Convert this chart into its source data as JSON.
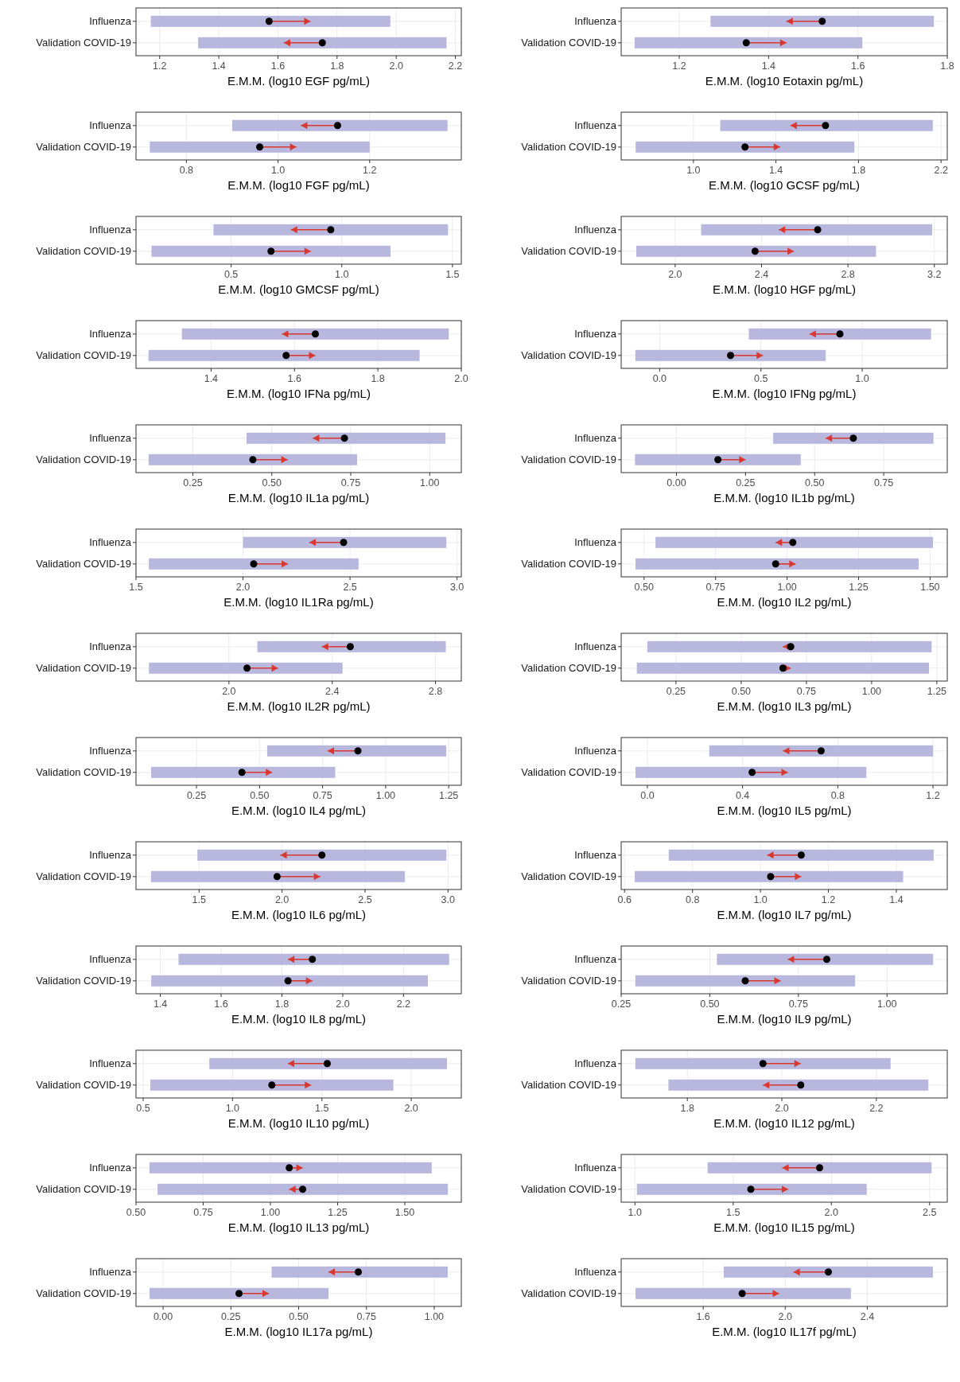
{
  "chart_data": [
    {
      "type": "bar",
      "orientation": "horizontal",
      "grid": true,
      "xlabel": "E.M.M. (log10 EGF pg/mL)",
      "categories": [
        "Influenza",
        "Validation COVID-19"
      ],
      "xlim": [
        1.12,
        2.22
      ],
      "xticks": [
        1.2,
        1.4,
        1.6,
        1.8,
        {
          "value": 2,
          "label": "2.0"
        },
        2.2
      ],
      "series": [
        {
          "type": "bar",
          "color": "#b4b4dc",
          "base": [
            1.17,
            1.33
          ],
          "values": [
            0.81,
            0.84
          ]
        },
        {
          "type": "scatter",
          "marker": "circle",
          "color": "#000000",
          "values": [
            1.57,
            1.75
          ],
          "errors": [
            [
              1.57,
              1.71
            ],
            [
              1.62,
              1.75
            ]
          ]
        }
      ]
    },
    {
      "type": "bar",
      "orientation": "horizontal",
      "grid": true,
      "xlabel": "E.M.M. (log10 Eotaxin pg/mL)",
      "categories": [
        "Influenza",
        "Validation COVID-19"
      ],
      "xlim": [
        1.07,
        1.8
      ],
      "xticks": [
        1.2,
        1.4,
        1.6,
        1.8
      ],
      "series": [
        {
          "type": "bar",
          "color": "#b4b4dc",
          "base": [
            1.27,
            1.1
          ],
          "values": [
            0.5,
            0.51
          ]
        },
        {
          "type": "scatter",
          "marker": "circle",
          "color": "#000000",
          "values": [
            1.52,
            1.35
          ],
          "errors": [
            [
              1.44,
              1.52
            ],
            [
              1.35,
              1.44
            ]
          ]
        }
      ]
    },
    {
      "type": "bar",
      "orientation": "horizontal",
      "grid": true,
      "xlabel": "E.M.M. (log10 FGF pg/mL)",
      "categories": [
        "Influenza",
        "Validation COVID-19"
      ],
      "xlim": [
        0.69,
        1.4
      ],
      "xticks": [
        0.8,
        {
          "value": 1,
          "label": "1.0"
        },
        1.2
      ],
      "series": [
        {
          "type": "bar",
          "color": "#b4b4dc",
          "base": [
            0.9,
            0.72
          ],
          "values": [
            0.47,
            0.48
          ]
        },
        {
          "type": "scatter",
          "marker": "circle",
          "color": "#000000",
          "values": [
            1.13,
            0.96
          ],
          "errors": [
            [
              1.05,
              1.13
            ],
            [
              0.96,
              1.04
            ]
          ]
        }
      ]
    },
    {
      "type": "bar",
      "orientation": "horizontal",
      "grid": true,
      "xlabel": "E.M.M. (log10 GCSF pg/mL)",
      "categories": [
        "Influenza",
        "Validation COVID-19"
      ],
      "xlim": [
        0.65,
        2.23
      ],
      "xticks": [
        {
          "value": 1,
          "label": "1.0"
        },
        1.4,
        1.8,
        2.2
      ],
      "series": [
        {
          "type": "bar",
          "color": "#b4b4dc",
          "base": [
            1.13,
            0.72
          ],
          "values": [
            1.03,
            1.06
          ]
        },
        {
          "type": "scatter",
          "marker": "circle",
          "color": "#000000",
          "values": [
            1.64,
            1.25
          ],
          "errors": [
            [
              1.47,
              1.64
            ],
            [
              1.25,
              1.42
            ]
          ]
        }
      ]
    },
    {
      "type": "bar",
      "orientation": "horizontal",
      "grid": true,
      "xlabel": "E.M.M. (log10 GMCSF pg/mL)",
      "categories": [
        "Influenza",
        "Validation COVID-19"
      ],
      "xlim": [
        0.07,
        1.54
      ],
      "xticks": [
        0.5,
        {
          "value": 1,
          "label": "1.0"
        },
        1.5
      ],
      "series": [
        {
          "type": "bar",
          "color": "#b4b4dc",
          "base": [
            0.42,
            0.14
          ],
          "values": [
            1.06,
            1.08
          ]
        },
        {
          "type": "scatter",
          "marker": "circle",
          "color": "#000000",
          "values": [
            0.95,
            0.68
          ],
          "errors": [
            [
              0.77,
              0.95
            ],
            [
              0.68,
              0.86
            ]
          ]
        }
      ]
    },
    {
      "type": "bar",
      "orientation": "horizontal",
      "grid": true,
      "xlabel": "E.M.M. (log10 HGF pg/mL)",
      "categories": [
        "Influenza",
        "Validation COVID-19"
      ],
      "xlim": [
        1.75,
        3.26
      ],
      "xticks": [
        {
          "value": 2,
          "label": "2.0"
        },
        2.4,
        2.8,
        3.2
      ],
      "series": [
        {
          "type": "bar",
          "color": "#b4b4dc",
          "base": [
            2.12,
            1.82
          ],
          "values": [
            1.07,
            1.11
          ]
        },
        {
          "type": "scatter",
          "marker": "circle",
          "color": "#000000",
          "values": [
            2.66,
            2.37
          ],
          "errors": [
            [
              2.48,
              2.66
            ],
            [
              2.37,
              2.55
            ]
          ]
        }
      ]
    },
    {
      "type": "bar",
      "orientation": "horizontal",
      "grid": true,
      "xlabel": "E.M.M. (log10 IFNa pg/mL)",
      "categories": [
        "Influenza",
        "Validation COVID-19"
      ],
      "xlim": [
        1.22,
        2.0
      ],
      "xticks": [
        1.4,
        1.6,
        1.8,
        {
          "value": 2,
          "label": "2.0"
        }
      ],
      "series": [
        {
          "type": "bar",
          "color": "#b4b4dc",
          "base": [
            1.33,
            1.25
          ],
          "values": [
            0.64,
            0.65
          ]
        },
        {
          "type": "scatter",
          "marker": "circle",
          "color": "#000000",
          "values": [
            1.65,
            1.58
          ],
          "errors": [
            [
              1.57,
              1.65
            ],
            [
              1.58,
              1.65
            ]
          ]
        }
      ]
    },
    {
      "type": "bar",
      "orientation": "horizontal",
      "grid": true,
      "xlabel": "E.M.M. (log10 IFNg pg/mL)",
      "categories": [
        "Influenza",
        "Validation COVID-19"
      ],
      "xlim": [
        -0.19,
        1.42
      ],
      "xticks": [
        {
          "value": 0,
          "label": "0.0"
        },
        0.5,
        {
          "value": 1,
          "label": "1.0"
        }
      ],
      "series": [
        {
          "type": "bar",
          "color": "#b4b4dc",
          "base": [
            0.44,
            -0.12
          ],
          "values": [
            0.9,
            0.94
          ]
        },
        {
          "type": "scatter",
          "marker": "circle",
          "color": "#000000",
          "values": [
            0.89,
            0.35
          ],
          "errors": [
            [
              0.74,
              0.89
            ],
            [
              0.35,
              0.51
            ]
          ]
        }
      ]
    },
    {
      "type": "bar",
      "orientation": "horizontal",
      "grid": true,
      "xlabel": "E.M.M. (log10 IL1a pg/mL)",
      "categories": [
        "Influenza",
        "Validation COVID-19"
      ],
      "xlim": [
        0.07,
        1.1
      ],
      "xticks": [
        0.25,
        {
          "value": 0.5,
          "label": "0.50"
        },
        0.75,
        {
          "value": 1,
          "label": "1.00"
        }
      ],
      "series": [
        {
          "type": "bar",
          "color": "#b4b4dc",
          "base": [
            0.42,
            0.11
          ],
          "values": [
            0.63,
            0.66
          ]
        },
        {
          "type": "scatter",
          "marker": "circle",
          "color": "#000000",
          "values": [
            0.73,
            0.44
          ],
          "errors": [
            [
              0.63,
              0.73
            ],
            [
              0.44,
              0.55
            ]
          ]
        }
      ]
    },
    {
      "type": "bar",
      "orientation": "horizontal",
      "grid": true,
      "xlabel": "E.M.M. (log10 IL1b pg/mL)",
      "categories": [
        "Influenza",
        "Validation COVID-19"
      ],
      "xlim": [
        -0.2,
        0.98
      ],
      "xticks": [
        {
          "value": 0,
          "label": "0.00"
        },
        0.25,
        {
          "value": 0.5,
          "label": "0.50"
        },
        0.75
      ],
      "series": [
        {
          "type": "bar",
          "color": "#b4b4dc",
          "base": [
            0.35,
            -0.15
          ],
          "values": [
            0.58,
            0.6
          ]
        },
        {
          "type": "scatter",
          "marker": "circle",
          "color": "#000000",
          "values": [
            0.64,
            0.15
          ],
          "errors": [
            [
              0.54,
              0.64
            ],
            [
              0.15,
              0.25
            ]
          ]
        }
      ]
    },
    {
      "type": "bar",
      "orientation": "horizontal",
      "grid": true,
      "xlabel": "E.M.M. (log10 IL1Ra pg/mL)",
      "categories": [
        "Influenza",
        "Validation COVID-19"
      ],
      "xlim": [
        1.5,
        3.02
      ],
      "xticks": [
        1.5,
        {
          "value": 2,
          "label": "2.0"
        },
        2.5,
        {
          "value": 3,
          "label": "3.0"
        }
      ],
      "series": [
        {
          "type": "bar",
          "color": "#b4b4dc",
          "base": [
            2.0,
            1.56
          ],
          "values": [
            0.95,
            0.98
          ]
        },
        {
          "type": "scatter",
          "marker": "circle",
          "color": "#000000",
          "values": [
            2.47,
            2.05
          ],
          "errors": [
            [
              2.31,
              2.47
            ],
            [
              2.05,
              2.21
            ]
          ]
        }
      ]
    },
    {
      "type": "bar",
      "orientation": "horizontal",
      "grid": true,
      "xlabel": "E.M.M. (log10 IL2 pg/mL)",
      "categories": [
        "Influenza",
        "Validation COVID-19"
      ],
      "xlim": [
        0.42,
        1.56
      ],
      "xticks": [
        {
          "value": 0.5,
          "label": "0.50"
        },
        0.75,
        {
          "value": 1,
          "label": "1.00"
        },
        1.25,
        {
          "value": 1.5,
          "label": "1.50"
        }
      ],
      "series": [
        {
          "type": "bar",
          "color": "#b4b4dc",
          "base": [
            0.54,
            0.47
          ],
          "values": [
            0.97,
            0.99
          ]
        },
        {
          "type": "scatter",
          "marker": "circle",
          "color": "#000000",
          "values": [
            1.02,
            0.96
          ],
          "errors": [
            [
              0.96,
              1.02
            ],
            [
              0.96,
              1.03
            ]
          ]
        }
      ]
    },
    {
      "type": "bar",
      "orientation": "horizontal",
      "grid": true,
      "xlabel": "E.M.M. (log10 IL2R pg/mL)",
      "categories": [
        "Influenza",
        "Validation COVID-19"
      ],
      "xlim": [
        1.64,
        2.9
      ],
      "xticks": [
        {
          "value": 2,
          "label": "2.0"
        },
        2.4,
        2.8
      ],
      "series": [
        {
          "type": "bar",
          "color": "#b4b4dc",
          "base": [
            2.11,
            1.69
          ],
          "values": [
            0.73,
            0.75
          ]
        },
        {
          "type": "scatter",
          "marker": "circle",
          "color": "#000000",
          "values": [
            2.47,
            2.07
          ],
          "errors": [
            [
              2.36,
              2.47
            ],
            [
              2.07,
              2.19
            ]
          ]
        }
      ]
    },
    {
      "type": "bar",
      "orientation": "horizontal",
      "grid": true,
      "xlabel": "E.M.M. (log10 IL3 pg/mL)",
      "categories": [
        "Influenza",
        "Validation COVID-19"
      ],
      "xlim": [
        0.04,
        1.29
      ],
      "xticks": [
        0.25,
        {
          "value": 0.5,
          "label": "0.50"
        },
        0.75,
        {
          "value": 1,
          "label": "1.00"
        },
        1.25
      ],
      "series": [
        {
          "type": "bar",
          "color": "#b4b4dc",
          "base": [
            0.14,
            0.1
          ],
          "values": [
            1.09,
            1.12
          ]
        },
        {
          "type": "scatter",
          "marker": "circle",
          "color": "#000000",
          "values": [
            0.69,
            0.66
          ],
          "errors": [
            [
              0.66,
              0.69
            ],
            [
              0.66,
              0.69
            ]
          ]
        }
      ]
    },
    {
      "type": "bar",
      "orientation": "horizontal",
      "grid": true,
      "xlabel": "E.M.M. (log10 IL4 pg/mL)",
      "categories": [
        "Influenza",
        "Validation COVID-19"
      ],
      "xlim": [
        0.01,
        1.3
      ],
      "xticks": [
        0.25,
        {
          "value": 0.5,
          "label": "0.50"
        },
        0.75,
        {
          "value": 1,
          "label": "1.00"
        },
        1.25
      ],
      "series": [
        {
          "type": "bar",
          "color": "#b4b4dc",
          "base": [
            0.53,
            0.07
          ],
          "values": [
            0.71,
            0.73
          ]
        },
        {
          "type": "scatter",
          "marker": "circle",
          "color": "#000000",
          "values": [
            0.89,
            0.43
          ],
          "errors": [
            [
              0.77,
              0.89
            ],
            [
              0.43,
              0.55
            ]
          ]
        }
      ]
    },
    {
      "type": "bar",
      "orientation": "horizontal",
      "grid": true,
      "xlabel": "E.M.M. (log10 IL5 pg/mL)",
      "categories": [
        "Influenza",
        "Validation COVID-19"
      ],
      "xlim": [
        -0.11,
        1.26
      ],
      "xticks": [
        {
          "value": 0,
          "label": "0.0"
        },
        0.4,
        0.8,
        1.2
      ],
      "series": [
        {
          "type": "bar",
          "color": "#b4b4dc",
          "base": [
            0.26,
            -0.05
          ],
          "values": [
            0.94,
            0.97
          ]
        },
        {
          "type": "scatter",
          "marker": "circle",
          "color": "#000000",
          "values": [
            0.73,
            0.44
          ],
          "errors": [
            [
              0.57,
              0.73
            ],
            [
              0.44,
              0.59
            ]
          ]
        }
      ]
    },
    {
      "type": "bar",
      "orientation": "horizontal",
      "grid": true,
      "xlabel": "E.M.M. (log10 IL6 pg/mL)",
      "categories": [
        "Influenza",
        "Validation COVID-19"
      ],
      "xlim": [
        1.12,
        3.08
      ],
      "xticks": [
        1.5,
        {
          "value": 2,
          "label": "2.0"
        },
        2.5,
        {
          "value": 3,
          "label": "3.0"
        }
      ],
      "series": [
        {
          "type": "bar",
          "color": "#b4b4dc",
          "base": [
            1.49,
            1.21
          ],
          "values": [
            1.5,
            1.53
          ]
        },
        {
          "type": "scatter",
          "marker": "circle",
          "color": "#000000",
          "values": [
            2.24,
            1.97
          ],
          "errors": [
            [
              1.99,
              2.24
            ],
            [
              1.97,
              2.23
            ]
          ]
        }
      ]
    },
    {
      "type": "bar",
      "orientation": "horizontal",
      "grid": true,
      "xlabel": "E.M.M. (log10 IL7 pg/mL)",
      "categories": [
        "Influenza",
        "Validation COVID-19"
      ],
      "xlim": [
        0.59,
        1.55
      ],
      "xticks": [
        0.6,
        0.8,
        {
          "value": 1,
          "label": "1.0"
        },
        1.2,
        1.4
      ],
      "series": [
        {
          "type": "bar",
          "color": "#b4b4dc",
          "base": [
            0.73,
            0.63
          ],
          "values": [
            0.78,
            0.79
          ]
        },
        {
          "type": "scatter",
          "marker": "circle",
          "color": "#000000",
          "values": [
            1.12,
            1.03
          ],
          "errors": [
            [
              1.02,
              1.12
            ],
            [
              1.03,
              1.12
            ]
          ]
        }
      ]
    },
    {
      "type": "bar",
      "orientation": "horizontal",
      "grid": true,
      "xlabel": "E.M.M. (log10 IL8 pg/mL)",
      "categories": [
        "Influenza",
        "Validation COVID-19"
      ],
      "xlim": [
        1.32,
        2.39
      ],
      "xticks": [
        1.4,
        1.6,
        1.8,
        {
          "value": 2,
          "label": "2.0"
        },
        2.2
      ],
      "series": [
        {
          "type": "bar",
          "color": "#b4b4dc",
          "base": [
            1.46,
            1.37
          ],
          "values": [
            0.89,
            0.91
          ]
        },
        {
          "type": "scatter",
          "marker": "circle",
          "color": "#000000",
          "values": [
            1.9,
            1.82
          ],
          "errors": [
            [
              1.82,
              1.9
            ],
            [
              1.82,
              1.9
            ]
          ]
        }
      ]
    },
    {
      "type": "bar",
      "orientation": "horizontal",
      "grid": true,
      "xlabel": "E.M.M. (log10 IL9 pg/mL)",
      "categories": [
        "Influenza",
        "Validation COVID-19"
      ],
      "xlim": [
        0.25,
        1.17
      ],
      "xticks": [
        0.25,
        {
          "value": 0.5,
          "label": "0.50"
        },
        0.75,
        {
          "value": 1,
          "label": "1.00"
        }
      ],
      "series": [
        {
          "type": "bar",
          "color": "#b4b4dc",
          "base": [
            0.52,
            0.29
          ],
          "values": [
            0.61,
            0.62
          ]
        },
        {
          "type": "scatter",
          "marker": "circle",
          "color": "#000000",
          "values": [
            0.83,
            0.6
          ],
          "errors": [
            [
              0.72,
              0.83
            ],
            [
              0.6,
              0.7
            ]
          ]
        }
      ]
    },
    {
      "type": "bar",
      "orientation": "horizontal",
      "grid": true,
      "xlabel": "E.M.M. (log10 IL10 pg/mL)",
      "categories": [
        "Influenza",
        "Validation COVID-19"
      ],
      "xlim": [
        0.46,
        2.28
      ],
      "xticks": [
        0.5,
        {
          "value": 1,
          "label": "1.0"
        },
        1.5,
        {
          "value": 2,
          "label": "2.0"
        }
      ],
      "series": [
        {
          "type": "bar",
          "color": "#b4b4dc",
          "base": [
            0.87,
            0.54
          ],
          "values": [
            1.33,
            1.36
          ]
        },
        {
          "type": "scatter",
          "marker": "circle",
          "color": "#000000",
          "values": [
            1.53,
            1.22
          ],
          "errors": [
            [
              1.31,
              1.53
            ],
            [
              1.22,
              1.44
            ]
          ]
        }
      ]
    },
    {
      "type": "bar",
      "orientation": "horizontal",
      "grid": true,
      "xlabel": "E.M.M. (log10 IL12 pg/mL)",
      "categories": [
        "Influenza",
        "Validation COVID-19"
      ],
      "xlim": [
        1.66,
        2.35
      ],
      "xticks": [
        1.8,
        {
          "value": 2,
          "label": "2.0"
        },
        2.2
      ],
      "series": [
        {
          "type": "bar",
          "color": "#b4b4dc",
          "base": [
            1.69,
            1.76
          ],
          "values": [
            0.54,
            0.55
          ]
        },
        {
          "type": "scatter",
          "marker": "circle",
          "color": "#000000",
          "values": [
            1.96,
            2.04
          ],
          "errors": [
            [
              1.96,
              2.04
            ],
            [
              1.96,
              2.04
            ]
          ]
        }
      ]
    },
    {
      "type": "bar",
      "orientation": "horizontal",
      "grid": true,
      "xlabel": "E.M.M. (log10 IL13 pg/mL)",
      "categories": [
        "Influenza",
        "Validation COVID-19"
      ],
      "xlim": [
        0.5,
        1.71
      ],
      "xticks": [
        {
          "value": 0.5,
          "label": "0.50"
        },
        0.75,
        {
          "value": 1,
          "label": "1.00"
        },
        1.25,
        {
          "value": 1.5,
          "label": "1.50"
        }
      ],
      "series": [
        {
          "type": "bar",
          "color": "#b4b4dc",
          "base": [
            0.55,
            0.58
          ],
          "values": [
            1.05,
            1.08
          ]
        },
        {
          "type": "scatter",
          "marker": "circle",
          "color": "#000000",
          "values": [
            1.07,
            1.12
          ],
          "errors": [
            [
              1.07,
              1.12
            ],
            [
              1.07,
              1.12
            ]
          ]
        }
      ]
    },
    {
      "type": "bar",
      "orientation": "horizontal",
      "grid": true,
      "xlabel": "E.M.M. (log10 IL15 pg/mL)",
      "categories": [
        "Influenza",
        "Validation COVID-19"
      ],
      "xlim": [
        0.93,
        2.59
      ],
      "xticks": [
        {
          "value": 1,
          "label": "1.0"
        },
        1.5,
        {
          "value": 2,
          "label": "2.0"
        },
        2.5
      ],
      "series": [
        {
          "type": "bar",
          "color": "#b4b4dc",
          "base": [
            1.37,
            1.01
          ],
          "values": [
            1.14,
            1.17
          ]
        },
        {
          "type": "scatter",
          "marker": "circle",
          "color": "#000000",
          "values": [
            1.94,
            1.59
          ],
          "errors": [
            [
              1.75,
              1.94
            ],
            [
              1.59,
              1.78
            ]
          ]
        }
      ]
    },
    {
      "type": "bar",
      "orientation": "horizontal",
      "grid": true,
      "xlabel": "E.M.M. (log10 IL17a pg/mL)",
      "categories": [
        "Influenza",
        "Validation COVID-19"
      ],
      "xlim": [
        -0.1,
        1.1
      ],
      "xticks": [
        {
          "value": 0,
          "label": "0.00"
        },
        0.25,
        {
          "value": 0.5,
          "label": "0.50"
        },
        0.75,
        {
          "value": 1,
          "label": "1.00"
        }
      ],
      "series": [
        {
          "type": "bar",
          "color": "#b4b4dc",
          "base": [
            0.4,
            -0.05
          ],
          "values": [
            0.65,
            0.66
          ]
        },
        {
          "type": "scatter",
          "marker": "circle",
          "color": "#000000",
          "values": [
            0.72,
            0.28
          ],
          "errors": [
            [
              0.61,
              0.72
            ],
            [
              0.28,
              0.39
            ]
          ]
        }
      ]
    },
    {
      "type": "bar",
      "orientation": "horizontal",
      "grid": true,
      "xlabel": "E.M.M. (log10 IL17f pg/mL)",
      "categories": [
        "Influenza",
        "Validation COVID-19"
      ],
      "xlim": [
        1.2,
        2.79
      ],
      "xticks": [
        1.6,
        {
          "value": 2,
          "label": "2.0"
        },
        2.4
      ],
      "series": [
        {
          "type": "bar",
          "color": "#b4b4dc",
          "base": [
            1.7,
            1.27
          ],
          "values": [
            1.02,
            1.05
          ]
        },
        {
          "type": "scatter",
          "marker": "circle",
          "color": "#000000",
          "values": [
            2.21,
            1.79
          ],
          "errors": [
            [
              2.04,
              2.21
            ],
            [
              1.79,
              1.97
            ]
          ]
        }
      ]
    }
  ]
}
